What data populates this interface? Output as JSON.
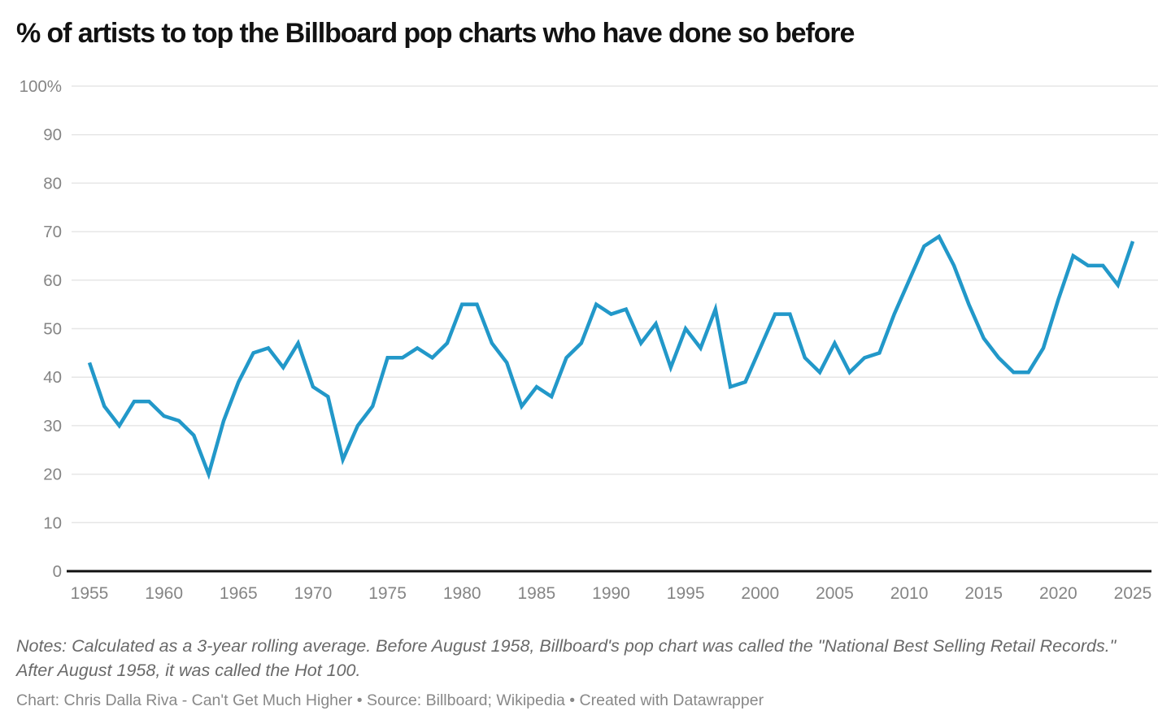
{
  "title": "% of artists to top the Billboard pop charts who have done so before",
  "notes": "Notes: Calculated as a 3-year rolling average. Before August 1958, Billboard's pop chart was called the \"National Best Selling Retail Records.\" After August 1958, it was called the Hot 100.",
  "byline": "Chart: Chris Dalla Riva - Can't Get Much Higher • Source: Billboard; Wikipedia • Created with Datawrapper",
  "colors": {
    "line": "#2298c9",
    "grid": "#e6e6e6",
    "baseline": "#111111",
    "axis_text": "#858585",
    "title_text": "#121212",
    "notes_text": "#696969",
    "byline_text": "#888888"
  },
  "chart_data": {
    "type": "line",
    "title": "% of artists to top the Billboard pop charts who have done so before",
    "xlabel": "",
    "ylabel": "",
    "legend": "none",
    "grid": "horizontal",
    "xlim": [
      1955,
      2025
    ],
    "ylim": [
      0,
      100
    ],
    "x_ticks": [
      1955,
      1960,
      1965,
      1970,
      1975,
      1980,
      1985,
      1990,
      1995,
      2000,
      2005,
      2010,
      2015,
      2020,
      2025
    ],
    "y_ticks": [
      0,
      10,
      20,
      30,
      40,
      50,
      60,
      70,
      80,
      90,
      100
    ],
    "y_tick_labels": [
      "0",
      "10",
      "20",
      "30",
      "40",
      "50",
      "60",
      "70",
      "80",
      "90",
      "100%"
    ],
    "x": [
      1955,
      1956,
      1957,
      1958,
      1959,
      1960,
      1961,
      1962,
      1963,
      1964,
      1965,
      1966,
      1967,
      1968,
      1969,
      1970,
      1971,
      1972,
      1973,
      1974,
      1975,
      1976,
      1977,
      1978,
      1979,
      1980,
      1981,
      1982,
      1983,
      1984,
      1985,
      1986,
      1987,
      1988,
      1989,
      1990,
      1991,
      1992,
      1993,
      1994,
      1995,
      1996,
      1997,
      1998,
      1999,
      2000,
      2001,
      2002,
      2003,
      2004,
      2005,
      2006,
      2007,
      2008,
      2009,
      2010,
      2011,
      2012,
      2013,
      2014,
      2015,
      2016,
      2017,
      2018,
      2019,
      2020,
      2021,
      2022,
      2023,
      2024,
      2025
    ],
    "values": [
      43,
      34,
      30,
      35,
      35,
      32,
      31,
      28,
      20,
      31,
      39,
      45,
      46,
      42,
      47,
      38,
      36,
      23,
      30,
      34,
      44,
      44,
      46,
      44,
      47,
      55,
      55,
      47,
      43,
      34,
      38,
      36,
      44,
      47,
      55,
      53,
      54,
      47,
      51,
      42,
      50,
      46,
      54,
      38,
      39,
      46,
      53,
      53,
      44,
      41,
      47,
      41,
      44,
      45,
      53,
      60,
      67,
      69,
      63,
      55,
      48,
      44,
      41,
      41,
      46,
      56,
      65,
      63,
      63,
      59,
      68
    ]
  }
}
